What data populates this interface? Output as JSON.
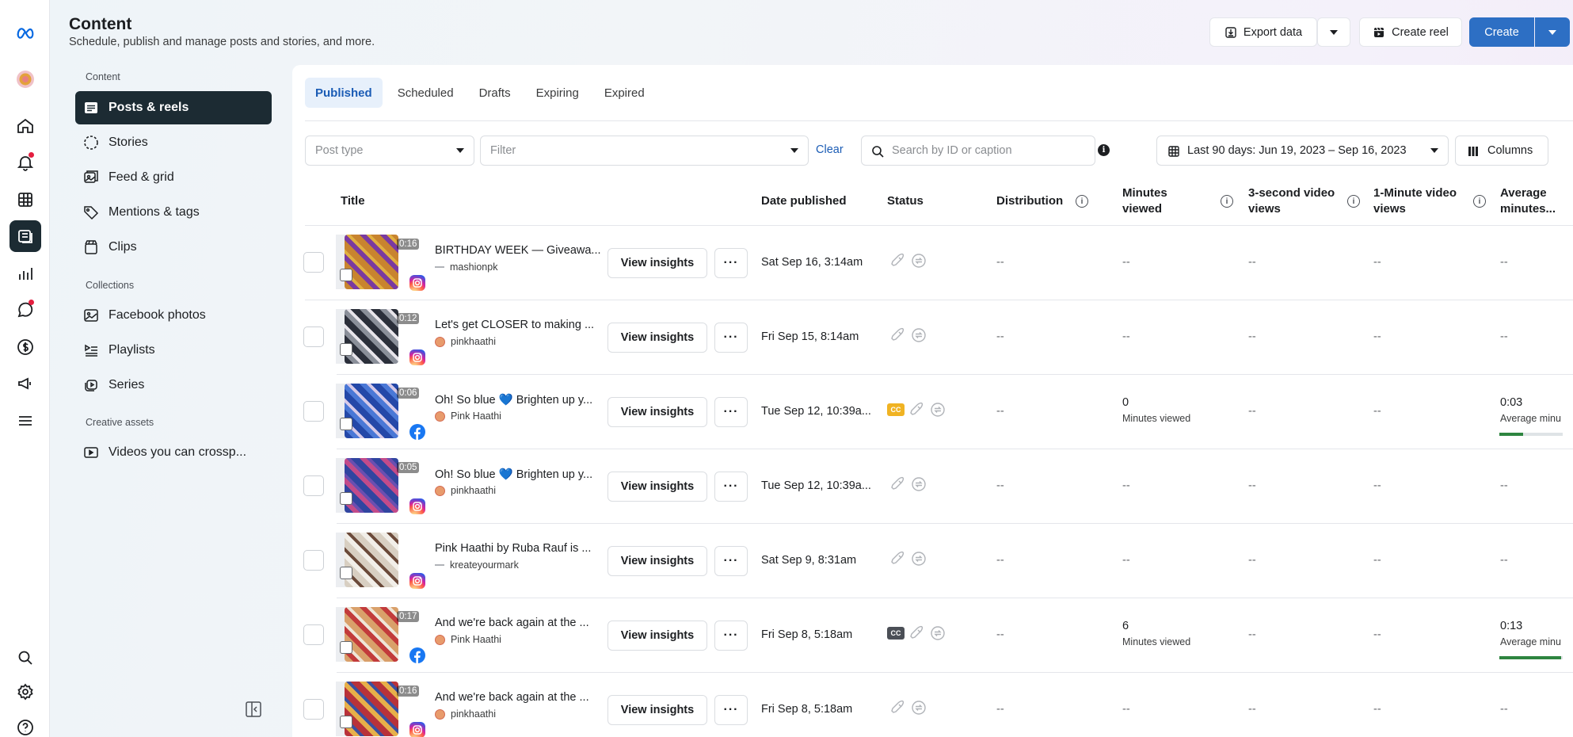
{
  "header": {
    "title": "Content",
    "subtitle": "Schedule, publish and manage posts and stories, and more.",
    "export_label": "Export data",
    "create_reel_label": "Create reel",
    "create_label": "Create"
  },
  "sidebar": {
    "section_content": "Content",
    "items_content": [
      {
        "label": "Posts & reels",
        "icon": "posts-icon",
        "active": true
      },
      {
        "label": "Stories",
        "icon": "stories-icon"
      },
      {
        "label": "Feed & grid",
        "icon": "feed-grid-icon"
      },
      {
        "label": "Mentions & tags",
        "icon": "tag-icon"
      },
      {
        "label": "Clips",
        "icon": "clips-icon"
      }
    ],
    "section_collections": "Collections",
    "items_collections": [
      {
        "label": "Facebook photos",
        "icon": "photo-icon"
      },
      {
        "label": "Playlists",
        "icon": "playlist-icon"
      },
      {
        "label": "Series",
        "icon": "series-icon"
      }
    ],
    "section_creative": "Creative assets",
    "items_creative": [
      {
        "label": "Videos you can crossp...",
        "icon": "video-icon"
      }
    ]
  },
  "tabs": [
    "Published",
    "Scheduled",
    "Drafts",
    "Expiring",
    "Expired"
  ],
  "filters": {
    "post_type_placeholder": "Post type",
    "filter_placeholder": "Filter",
    "clear_label": "Clear",
    "search_placeholder": "Search by ID or caption",
    "date_range": "Last 90 days: Jun 19, 2023 – Sep 16, 2023",
    "columns_label": "Columns"
  },
  "table": {
    "headers": {
      "title": "Title",
      "date": "Date published",
      "status": "Status",
      "distribution": "Distribution",
      "minutes_viewed_1": "Minutes",
      "minutes_viewed_2": "viewed",
      "three_sec_1": "3-second video",
      "three_sec_2": "views",
      "one_min_1": "1-Minute video",
      "one_min_2": "views",
      "avg_1": "Average",
      "avg_2": "minutes..."
    },
    "rows": [
      {
        "duration": "0:16",
        "caption": "BIRTHDAY WEEK — Giveawa...",
        "account": "mashionpk",
        "account_avatar": "dash",
        "platform": "instagram",
        "date": "Sat Sep 16, 3:14am",
        "cc": "",
        "distribution": "--",
        "minutes": "--",
        "minutes_sub": "",
        "three_sec": "--",
        "one_min": "--",
        "avg": "--",
        "avg_sub": "",
        "avg_fill": 0,
        "thumb_colors": [
          "#c8842f",
          "#7a3aa0",
          "#e0b040"
        ]
      },
      {
        "duration": "0:12",
        "caption": "Let's get CLOSER to making ...",
        "account": "pinkhaathi",
        "account_avatar": "avatar",
        "platform": "instagram",
        "date": "Fri Sep 15, 8:14am",
        "cc": "",
        "distribution": "--",
        "minutes": "--",
        "minutes_sub": "",
        "three_sec": "--",
        "one_min": "--",
        "avg": "--",
        "avg_sub": "",
        "avg_fill": 0,
        "thumb_colors": [
          "#2b2f3a",
          "#8a8f99",
          "#e7e4ea"
        ]
      },
      {
        "duration": "0:06",
        "caption": "Oh! So blue 💙 Brighten up y...",
        "account": "Pink Haathi",
        "account_avatar": "avatar",
        "platform": "facebook",
        "date": "Tue Sep 12, 10:39a...",
        "cc": "gold",
        "distribution": "--",
        "minutes": "0",
        "minutes_sub": "Minutes viewed",
        "three_sec": "--",
        "one_min": "--",
        "avg": "0:03",
        "avg_sub": "Average minu",
        "avg_fill": 0.38,
        "thumb_colors": [
          "#2448a8",
          "#4a78d6",
          "#d6c9e8"
        ]
      },
      {
        "duration": "0:05",
        "caption": "Oh! So blue 💙 Brighten up y...",
        "account": "pinkhaathi",
        "account_avatar": "avatar",
        "platform": "instagram",
        "date": "Tue Sep 12, 10:39a...",
        "cc": "",
        "distribution": "--",
        "minutes": "--",
        "minutes_sub": "",
        "three_sec": "--",
        "one_min": "--",
        "avg": "--",
        "avg_sub": "",
        "avg_fill": 0,
        "thumb_colors": [
          "#3145a0",
          "#c24b8a",
          "#6a4fb0"
        ]
      },
      {
        "duration": "",
        "caption": "Pink Haathi by Ruba Rauf is ...",
        "account": "kreateyourmark",
        "account_avatar": "dash",
        "platform": "instagram",
        "date": "Sat Sep 9, 8:31am",
        "cc": "",
        "distribution": "--",
        "minutes": "--",
        "minutes_sub": "",
        "three_sec": "--",
        "one_min": "--",
        "avg": "--",
        "avg_sub": "",
        "avg_fill": 0,
        "thumb_colors": [
          "#d8cfc2",
          "#f2efe9",
          "#6b4a3a"
        ]
      },
      {
        "duration": "0:17",
        "caption": "And we're back again at the ...",
        "account": "Pink Haathi",
        "account_avatar": "avatar",
        "platform": "facebook",
        "date": "Fri Sep 8, 5:18am",
        "cc": "dark",
        "distribution": "--",
        "minutes": "6",
        "minutes_sub": "Minutes viewed",
        "three_sec": "--",
        "one_min": "--",
        "avg": "0:13",
        "avg_sub": "Average minu",
        "avg_fill": 0.98,
        "thumb_colors": [
          "#d9a06a",
          "#c23b3b",
          "#efe6d8"
        ]
      },
      {
        "duration": "0:16",
        "caption": "And we're back again at the ...",
        "account": "pinkhaathi",
        "account_avatar": "avatar",
        "platform": "instagram",
        "date": "Fri Sep 8, 5:18am",
        "cc": "",
        "distribution": "--",
        "minutes": "--",
        "minutes_sub": "",
        "three_sec": "--",
        "one_min": "--",
        "avg": "--",
        "avg_sub": "",
        "avg_fill": 0,
        "thumb_colors": [
          "#b8323a",
          "#e7b04a",
          "#3a4fa0"
        ]
      }
    ]
  },
  "colors": {
    "accent": "#2d6fc4",
    "active_nav": "#1c2b33",
    "instagram": "#d6249f",
    "facebook": "#1877f2",
    "progress": "#2e8540"
  }
}
